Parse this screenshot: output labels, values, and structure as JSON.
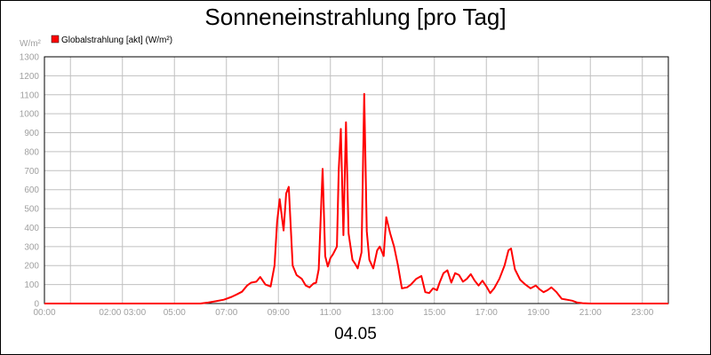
{
  "colors": {
    "series": "#ff0000",
    "grid": "#c0c0c0",
    "tick_text": "#a0a0a0",
    "text": "#000000",
    "background": "#ffffff"
  },
  "chart_data": {
    "type": "line",
    "title": "Sonneneinstrahlung [pro Tag]",
    "date_label": "04.05",
    "ylabel": "W/m²",
    "xlabel": "",
    "ylim": [
      0,
      1300
    ],
    "xlim": [
      0,
      24
    ],
    "yticks": [
      0,
      100,
      200,
      300,
      400,
      500,
      600,
      700,
      800,
      900,
      1000,
      1100,
      1200,
      1300
    ],
    "xticks": [
      {
        "value": 0,
        "label": "00:00"
      },
      {
        "value": 3,
        "label": "02:00 03:00"
      },
      {
        "value": 5,
        "label": "05:00"
      },
      {
        "value": 7,
        "label": "07:00"
      },
      {
        "value": 9,
        "label": "09:00"
      },
      {
        "value": 11,
        "label": "11:00"
      },
      {
        "value": 13,
        "label": "13:00"
      },
      {
        "value": 15,
        "label": "15:00"
      },
      {
        "value": 17,
        "label": "17:00"
      },
      {
        "value": 19,
        "label": "19:00"
      },
      {
        "value": 21,
        "label": "21:00"
      },
      {
        "value": 23,
        "label": "23:00"
      }
    ],
    "grid": true,
    "legend_position": "top-left",
    "series": [
      {
        "name": "Globalstrahlung [akt] (W/m²)",
        "x": [
          0,
          6.0,
          6.3,
          6.6,
          6.9,
          7.2,
          7.4,
          7.6,
          7.8,
          7.95,
          8.15,
          8.3,
          8.5,
          8.7,
          8.85,
          8.95,
          9.05,
          9.2,
          9.3,
          9.4,
          9.55,
          9.7,
          9.9,
          10.05,
          10.2,
          10.35,
          10.45,
          10.55,
          10.7,
          10.8,
          10.9,
          11.0,
          11.1,
          11.25,
          11.32,
          11.4,
          11.5,
          11.6,
          11.7,
          11.85,
          11.95,
          12.05,
          12.2,
          12.3,
          12.4,
          12.5,
          12.65,
          12.8,
          12.9,
          13.05,
          13.15,
          13.3,
          13.45,
          13.6,
          13.75,
          13.95,
          14.1,
          14.3,
          14.5,
          14.65,
          14.8,
          14.95,
          15.1,
          15.2,
          15.35,
          15.5,
          15.65,
          15.8,
          15.95,
          16.1,
          16.25,
          16.4,
          16.55,
          16.7,
          16.85,
          17.0,
          17.15,
          17.3,
          17.5,
          17.7,
          17.85,
          17.95,
          18.1,
          18.3,
          18.5,
          18.7,
          18.9,
          19.05,
          19.2,
          19.35,
          19.5,
          19.7,
          19.9,
          20.1,
          20.3,
          20.5,
          20.7,
          21.0,
          21.5,
          22.0,
          24.0
        ],
        "y": [
          0,
          0,
          5,
          12,
          20,
          35,
          48,
          62,
          95,
          110,
          115,
          140,
          100,
          90,
          200,
          430,
          550,
          385,
          580,
          615,
          200,
          150,
          130,
          95,
          85,
          105,
          110,
          180,
          710,
          250,
          195,
          240,
          260,
          300,
          700,
          920,
          360,
          955,
          370,
          230,
          210,
          185,
          270,
          1105,
          380,
          230,
          185,
          280,
          300,
          250,
          455,
          370,
          300,
          200,
          80,
          85,
          100,
          130,
          145,
          60,
          55,
          80,
          70,
          110,
          160,
          175,
          110,
          160,
          150,
          115,
          130,
          155,
          120,
          95,
          120,
          90,
          55,
          80,
          130,
          200,
          280,
          290,
          180,
          125,
          100,
          80,
          95,
          75,
          60,
          70,
          85,
          60,
          25,
          20,
          15,
          5,
          2,
          0,
          0,
          0,
          0
        ]
      }
    ]
  }
}
